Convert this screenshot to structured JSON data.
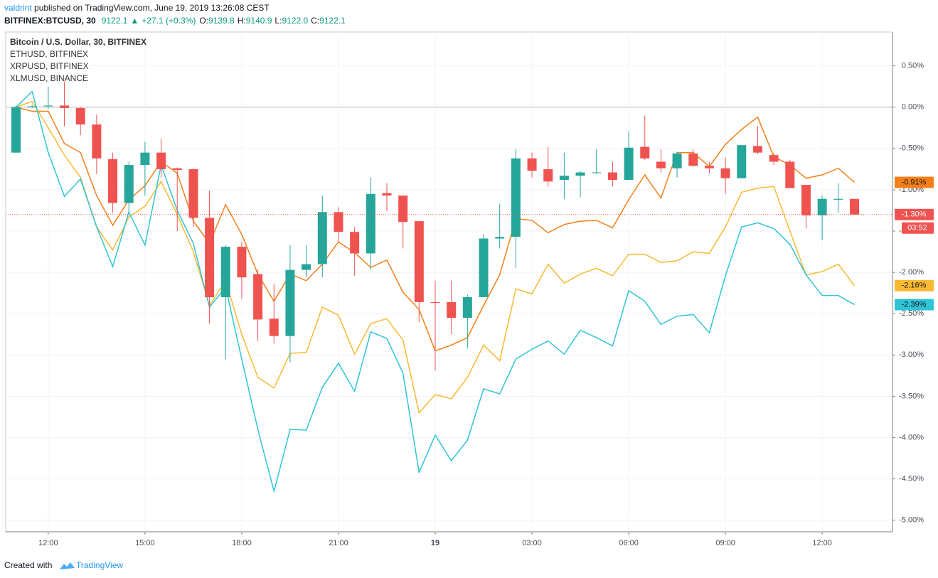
{
  "header": {
    "author": "valdrint",
    "published": "published on TradingView.com, June 19, 2019 13:26:08 CEST",
    "symbol": "BITFINEX:BTCUSD, 30",
    "last": "9122.1",
    "change": "+27.1 (+0.3%)",
    "ohlc": [
      {
        "label": "O:",
        "value": "9139.8"
      },
      {
        "label": "H:",
        "value": "9140.9"
      },
      {
        "label": "L:",
        "value": "9122.0"
      },
      {
        "label": "C:",
        "value": "9122.1"
      }
    ]
  },
  "footer": {
    "created": "Created with",
    "brand": "TradingView"
  },
  "chart_data": {
    "type": "candlestick",
    "title": "Bitcoin / U.S. Dollar, 30, BITFINEX",
    "up_color": "#26a69a",
    "down_color": "#ef5350",
    "last_label": "-1.30%",
    "countdown": "03:52",
    "grid": true,
    "xlim": [
      10.68,
      38.18
    ],
    "ylim": [
      -5.14,
      0.91
    ],
    "xticks": [
      {
        "value": 12,
        "label": "12:00"
      },
      {
        "value": 15,
        "label": "15:00"
      },
      {
        "value": 18,
        "label": "18:00"
      },
      {
        "value": 21,
        "label": "21:00"
      },
      {
        "value": 24,
        "label": "19"
      },
      {
        "value": 27,
        "label": "03:00"
      },
      {
        "value": 30,
        "label": "06:00"
      },
      {
        "value": 33,
        "label": "09:00"
      },
      {
        "value": 36,
        "label": "12:00"
      }
    ],
    "yticks": [
      {
        "value": 0.5,
        "label": "0.50%"
      },
      {
        "value": 0,
        "label": "0.00%"
      },
      {
        "value": -0.5,
        "label": "-0.50%"
      },
      {
        "value": -1,
        "label": "-1.00%"
      },
      {
        "value": -1.5,
        "label": "-1.50%"
      },
      {
        "value": -2,
        "label": "-2.00%"
      },
      {
        "value": -2.5,
        "label": "-2.50%"
      },
      {
        "value": -3,
        "label": "-3.00%"
      },
      {
        "value": -3.5,
        "label": "-3.50%"
      },
      {
        "value": -4,
        "label": "-4.00%"
      },
      {
        "value": -4.5,
        "label": "-4.50%"
      },
      {
        "value": -5,
        "label": "-5.00%"
      }
    ],
    "x": [
      11,
      11.5,
      12,
      12.5,
      13,
      13.5,
      14,
      14.5,
      15,
      15.5,
      16,
      16.5,
      17,
      17.5,
      18,
      18.5,
      19,
      19.5,
      20,
      20.5,
      21,
      21.5,
      22,
      22.5,
      23,
      23.5,
      24,
      24.5,
      25,
      25.5,
      26,
      26.5,
      27,
      27.5,
      28,
      28.5,
      29,
      29.5,
      30,
      30.5,
      31,
      31.5,
      32,
      32.5,
      33,
      33.5,
      34,
      34.5,
      35,
      35.5,
      36,
      36.5,
      37
    ],
    "open": [
      -0.55,
      0.0,
      0.01,
      0.02,
      -0.01,
      -0.21,
      -0.63,
      -1.16,
      -0.7,
      -0.55,
      -0.74,
      -0.75,
      -1.34,
      -2.3,
      -1.69,
      -2.02,
      -2.56,
      -2.77,
      -1.97,
      -1.9,
      -1.27,
      -1.51,
      -1.77,
      -1.04,
      -1.07,
      -1.38,
      -2.36,
      -2.36,
      -2.55,
      -2.3,
      -1.59,
      -1.57,
      -0.62,
      -0.75,
      -0.88,
      -0.83,
      -0.79,
      -0.79,
      -0.88,
      -0.48,
      -0.66,
      -0.74,
      -0.56,
      -0.71,
      -0.74,
      -0.86,
      -0.47,
      -0.58,
      -0.66,
      -0.94,
      -1.31,
      -1.12,
      -1.11
    ],
    "high": [
      0.02,
      0.03,
      0.25,
      0.31,
      0.0,
      -0.09,
      -0.55,
      -0.66,
      -0.42,
      -0.38,
      -0.73,
      -0.74,
      -1.01,
      -1.67,
      -1.63,
      -1.97,
      -2.14,
      -1.67,
      -1.67,
      -1.07,
      -1.21,
      -1.45,
      -0.85,
      -0.92,
      -1.07,
      -1.38,
      -2.1,
      -2.1,
      -2.27,
      -1.54,
      -1.17,
      -0.51,
      -0.55,
      -0.48,
      -0.55,
      -0.77,
      -0.51,
      -0.66,
      -0.29,
      -0.1,
      -0.51,
      -0.54,
      -0.51,
      -0.66,
      -0.61,
      -0.46,
      -0.23,
      -0.55,
      -0.64,
      -0.94,
      -1.07,
      -0.92,
      -1.11
    ],
    "low": [
      -0.55,
      -0.01,
      -0.02,
      -0.23,
      -0.34,
      -0.81,
      -1.28,
      -1.27,
      -1.07,
      -0.85,
      -1.5,
      -1.45,
      -2.62,
      -3.05,
      -2.32,
      -2.83,
      -2.86,
      -3.09,
      -2.06,
      -2.06,
      -1.63,
      -2.04,
      -1.97,
      -1.26,
      -1.71,
      -2.6,
      -3.19,
      -2.75,
      -2.92,
      -2.3,
      -1.71,
      -1.95,
      -0.85,
      -0.96,
      -1.11,
      -1.09,
      -0.81,
      -0.96,
      -0.88,
      -0.64,
      -0.79,
      -0.85,
      -0.72,
      -0.8,
      -1.05,
      -0.86,
      -0.57,
      -0.7,
      -0.98,
      -1.47,
      -1.61,
      -1.28,
      -1.3
    ],
    "close": [
      0.0,
      0.01,
      0.02,
      -0.01,
      -0.21,
      -0.62,
      -1.16,
      -0.7,
      -0.55,
      -0.75,
      -0.76,
      -1.34,
      -2.3,
      -1.69,
      -2.06,
      -2.57,
      -2.77,
      -1.97,
      -1.9,
      -1.27,
      -1.51,
      -1.77,
      -1.05,
      -1.07,
      -1.39,
      -2.36,
      -2.37,
      -2.55,
      -2.3,
      -1.59,
      -1.57,
      -0.62,
      -0.77,
      -0.9,
      -0.83,
      -0.79,
      -0.79,
      -0.88,
      -0.49,
      -0.62,
      -0.74,
      -0.56,
      -0.71,
      -0.74,
      -0.86,
      -0.46,
      -0.55,
      -0.66,
      -0.98,
      -1.31,
      -1.11,
      -1.11,
      -1.3
    ],
    "series": [
      {
        "name": "ETHUSD, BITFINEX",
        "color": "#f57f17",
        "last_label": "-0.91%",
        "values": [
          0.0,
          -0.05,
          -0.05,
          -0.44,
          -0.55,
          -1.07,
          -1.43,
          -1.12,
          -0.95,
          -0.66,
          -0.8,
          -1.38,
          -1.65,
          -1.18,
          -1.54,
          -2.02,
          -2.35,
          -2.02,
          -2.1,
          -1.9,
          -1.63,
          -1.76,
          -1.94,
          -1.85,
          -2.24,
          -2.45,
          -2.95,
          -2.88,
          -2.79,
          -2.4,
          -2.03,
          -1.35,
          -1.37,
          -1.52,
          -1.42,
          -1.38,
          -1.37,
          -1.46,
          -1.12,
          -0.82,
          -1.1,
          -0.55,
          -0.55,
          -0.72,
          -0.45,
          -0.27,
          -0.12,
          -0.6,
          -0.7,
          -0.86,
          -0.82,
          -0.74,
          -0.91
        ]
      },
      {
        "name": "XRPUSD, BITFINEX",
        "color": "#f9b931",
        "last_label": "-2.16%",
        "values": [
          0.0,
          0.07,
          -0.25,
          -0.58,
          -0.85,
          -1.45,
          -1.73,
          -1.33,
          -1.2,
          -0.9,
          -1.3,
          -1.75,
          -2.4,
          -2.1,
          -2.75,
          -3.27,
          -3.4,
          -2.98,
          -2.97,
          -2.42,
          -2.52,
          -2.99,
          -2.62,
          -2.56,
          -2.82,
          -3.7,
          -3.48,
          -3.53,
          -3.27,
          -2.88,
          -3.07,
          -2.2,
          -2.26,
          -1.9,
          -2.13,
          -2.02,
          -1.95,
          -2.04,
          -1.78,
          -1.78,
          -1.88,
          -1.86,
          -1.75,
          -1.77,
          -1.45,
          -1.03,
          -0.98,
          -0.96,
          -1.5,
          -2.03,
          -1.99,
          -1.9,
          -2.16
        ]
      },
      {
        "name": "XLMUSD, BINANCE",
        "color": "#2ec4d6",
        "last_label": "-2.39%",
        "values": [
          0.0,
          0.19,
          -0.55,
          -1.08,
          -0.87,
          -1.45,
          -1.93,
          -1.27,
          -1.67,
          -0.7,
          -1.25,
          -1.65,
          -2.42,
          -2.18,
          -3.05,
          -3.9,
          -4.65,
          -3.9,
          -3.91,
          -3.39,
          -3.1,
          -3.44,
          -2.72,
          -2.8,
          -3.22,
          -4.42,
          -3.97,
          -4.28,
          -4.03,
          -3.41,
          -3.47,
          -3.05,
          -2.93,
          -2.83,
          -2.99,
          -2.7,
          -2.79,
          -2.89,
          -2.22,
          -2.35,
          -2.63,
          -2.53,
          -2.51,
          -2.73,
          -2.04,
          -1.45,
          -1.4,
          -1.47,
          -1.66,
          -2.03,
          -2.28,
          -2.28,
          -2.39
        ]
      }
    ]
  }
}
